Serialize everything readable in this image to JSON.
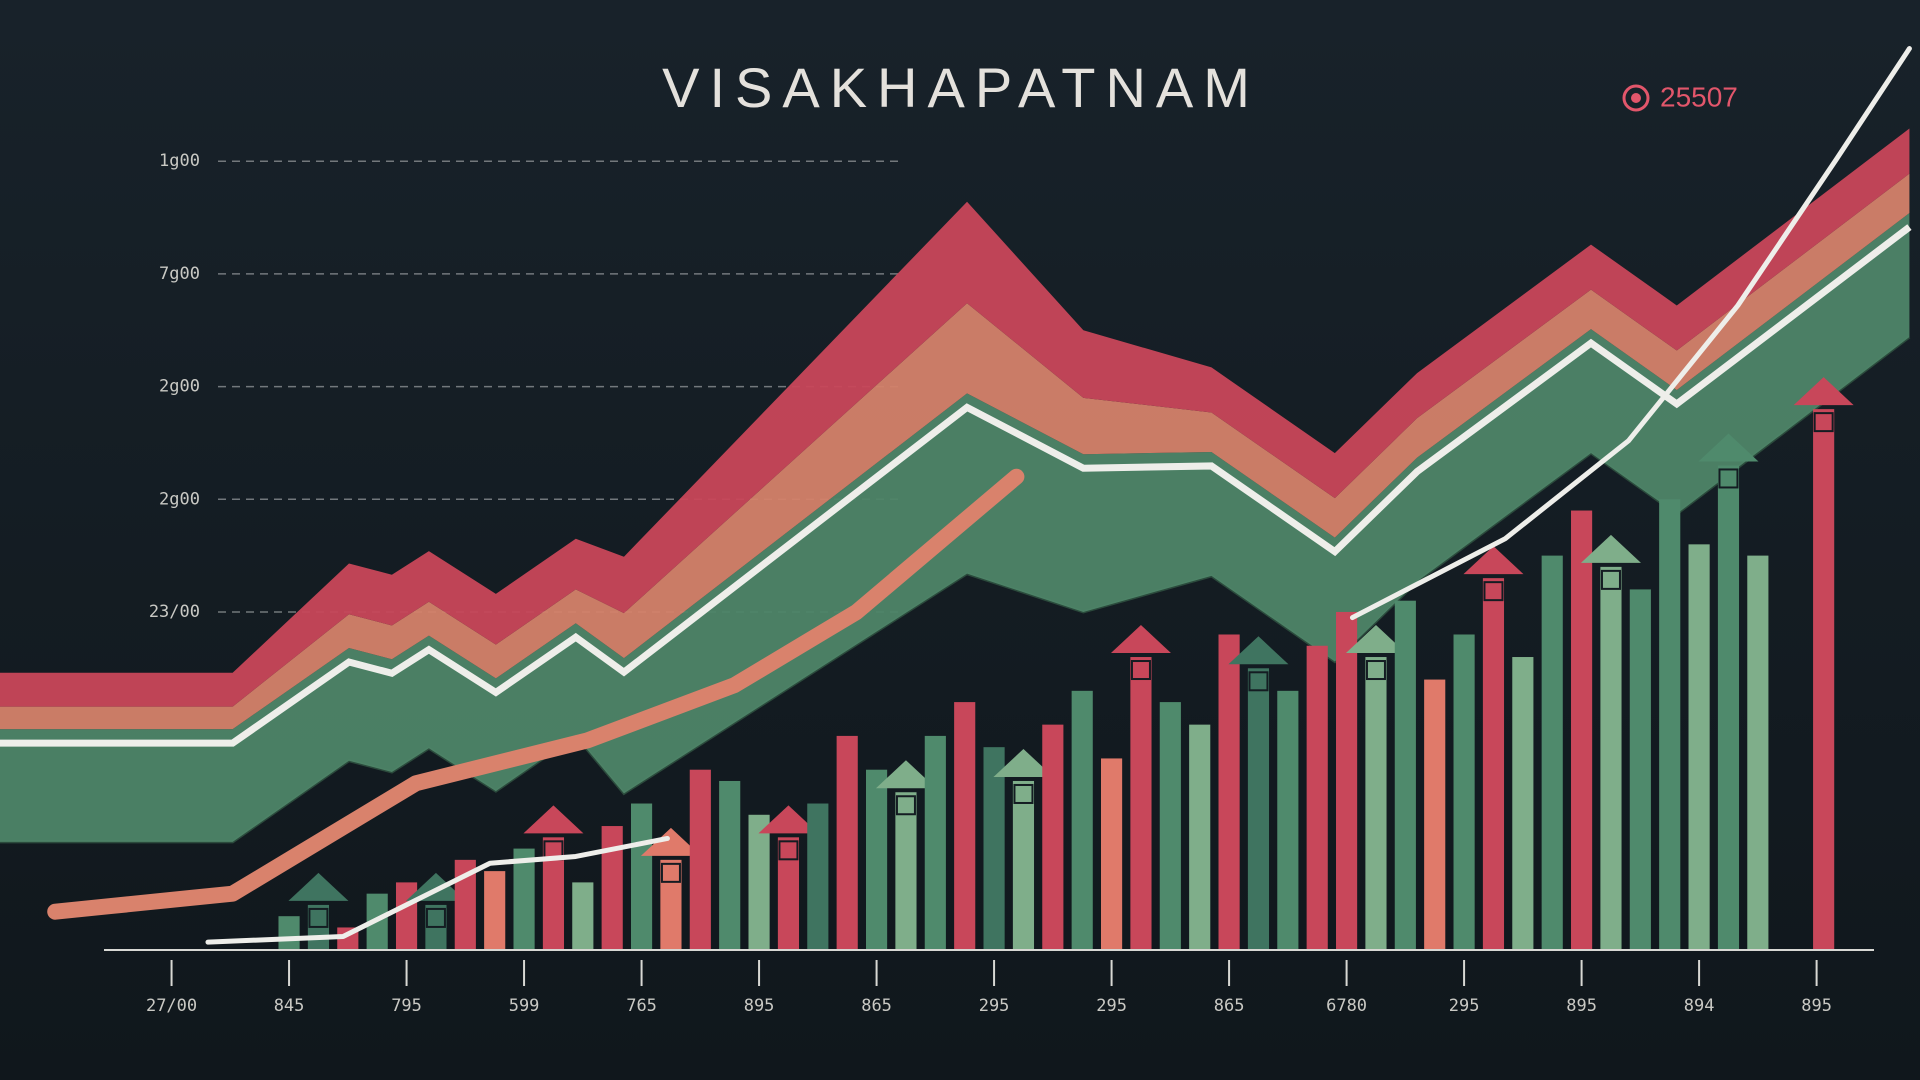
{
  "chart_data": {
    "type": "bar",
    "title": "VISAKHAPATNAM",
    "badge": "25507",
    "xlim": [
      -1.46,
      14.88
    ],
    "ylim": [
      0,
      8.2
    ],
    "xticks": [
      {
        "value": 0,
        "label": "27/00"
      },
      {
        "value": 1,
        "label": "845"
      },
      {
        "value": 2,
        "label": "795"
      },
      {
        "value": 3,
        "label": "599"
      },
      {
        "value": 4,
        "label": "765"
      },
      {
        "value": 5,
        "label": "895"
      },
      {
        "value": 6,
        "label": "865"
      },
      {
        "value": 7,
        "label": "295"
      },
      {
        "value": 8,
        "label": "295"
      },
      {
        "value": 9,
        "label": "865"
      },
      {
        "value": 10,
        "label": "6780"
      },
      {
        "value": 11,
        "label": "295"
      },
      {
        "value": 12,
        "label": "895"
      },
      {
        "value": 13,
        "label": "894"
      },
      {
        "value": 14,
        "label": "895"
      }
    ],
    "yticks": [
      {
        "value": 7,
        "label": "1g00"
      },
      {
        "value": 6,
        "label": "7g00"
      },
      {
        "value": 5,
        "label": "2g00"
      },
      {
        "value": 4,
        "label": "2g00"
      },
      {
        "value": 3,
        "label": "23/00"
      }
    ],
    "grid": true,
    "x": [
      1,
      1.25,
      1.5,
      1.75,
      2,
      2.25,
      2.5,
      2.75,
      3,
      3.25,
      3.5,
      3.75,
      4,
      4.25,
      4.5,
      4.75,
      5,
      5.25,
      5.5,
      5.75,
      6,
      6.25,
      6.5,
      6.75,
      7,
      7.25,
      7.5,
      7.75,
      8,
      8.25,
      8.5,
      8.75,
      9,
      9.25,
      9.5,
      9.75,
      10,
      10.25,
      10.5,
      10.75,
      11,
      11.25,
      11.5,
      11.75,
      12,
      12.25,
      12.5,
      12.75,
      13,
      13.25,
      13.5,
      14.06
    ],
    "values": [
      0.3,
      0.4,
      0.2,
      0.5,
      0.6,
      0.4,
      0.8,
      0.7,
      0.9,
      1.0,
      0.6,
      1.1,
      1.3,
      0.8,
      1.6,
      1.5,
      1.2,
      1.0,
      1.3,
      1.9,
      1.6,
      1.4,
      1.9,
      2.2,
      1.8,
      1.5,
      2.0,
      2.3,
      1.7,
      2.6,
      2.2,
      2.0,
      2.8,
      2.5,
      2.3,
      2.7,
      3.0,
      2.6,
      3.1,
      2.4,
      2.8,
      3.3,
      2.6,
      3.5,
      3.9,
      3.4,
      3.2,
      4.0,
      3.6,
      4.3,
      3.5,
      4.8
    ],
    "colors": [
      "#4f8a6c",
      "#3f7460",
      "#c8475a",
      "#4f8a6c",
      "#c8475a",
      "#3f7460",
      "#c8475a",
      "#e07a6a",
      "#4f8a6c",
      "#c8475a",
      "#7fae8a",
      "#c8475a",
      "#4f8a6c",
      "#e07a6a",
      "#c8475a",
      "#4f8a6c",
      "#7fae8a",
      "#c8475a",
      "#3f7460",
      "#c8475a",
      "#4f8a6c",
      "#7fae8a",
      "#4f8a6c",
      "#c8475a",
      "#3f7460",
      "#7fae8a",
      "#c8475a",
      "#4f8a6c",
      "#e07a6a",
      "#c8475a",
      "#4f8a6c",
      "#7fae8a",
      "#c8475a",
      "#3f7460",
      "#4f8a6c",
      "#c8475a",
      "#c8475a",
      "#7fae8a",
      "#4f8a6c",
      "#e07a6a",
      "#4f8a6c",
      "#c8475a",
      "#7fae8a",
      "#4f8a6c",
      "#c8475a",
      "#7fae8a",
      "#4f8a6c",
      "#4f8a6c",
      "#7fae8a",
      "#4f8a6c",
      "#7fae8a",
      "#c8475a"
    ],
    "band_x": [
      -1.46,
      0.52,
      1.51,
      1.875,
      2.19,
      2.76,
      3.44,
      3.85,
      6.77,
      7.76,
      8.85,
      9.9,
      10.6,
      12.08,
      12.81,
      14.79
    ],
    "band_base": [
      0.96,
      0.96,
      1.68,
      1.58,
      1.79,
      1.41,
      1.9,
      1.39,
      3.34,
      3.0,
      3.32,
      2.56,
      3.27,
      4.41,
      3.87,
      5.44
    ],
    "bands": [
      {
        "color": "#4e8568",
        "values": [
          1.0,
          1.0,
          1.0,
          1.0,
          1.0,
          1.0,
          1.0,
          1.2,
          1.6,
          1.4,
          1.1,
          1.1,
          1.1,
          1.1,
          1.1,
          1.1
        ]
      },
      {
        "color": "#d4826a",
        "values": [
          0.2,
          0.2,
          0.3,
          0.3,
          0.3,
          0.3,
          0.3,
          0.4,
          0.8,
          0.5,
          0.35,
          0.35,
          0.35,
          0.35,
          0.35,
          0.35
        ]
      },
      {
        "color": "#c8475a",
        "values": [
          0.3,
          0.3,
          0.45,
          0.45,
          0.45,
          0.45,
          0.45,
          0.5,
          0.9,
          0.6,
          0.4,
          0.4,
          0.4,
          0.4,
          0.4,
          0.4
        ]
      }
    ],
    "lines": [
      {
        "color": "#d9826c",
        "x": [
          -0.99,
          -0.52,
          0.52,
          2.08,
          3.54,
          4.79,
          5.83,
          7.19
        ],
        "values": [
          0.34,
          0.39,
          0.5,
          1.48,
          1.86,
          2.35,
          3.0,
          4.2
        ]
      },
      {
        "color": "#eeeeea",
        "x": [
          0.31,
          1.46,
          2.71,
          3.44,
          4.22
        ],
        "values": [
          0.07,
          0.12,
          0.77,
          0.83,
          0.99
        ]
      },
      {
        "color": "#eeeeea",
        "x": [
          10.05,
          11.35,
          12.4,
          13.33,
          14.17,
          14.79
        ],
        "values": [
          2.95,
          3.65,
          4.52,
          5.72,
          7.02,
          8.0
        ]
      }
    ]
  }
}
